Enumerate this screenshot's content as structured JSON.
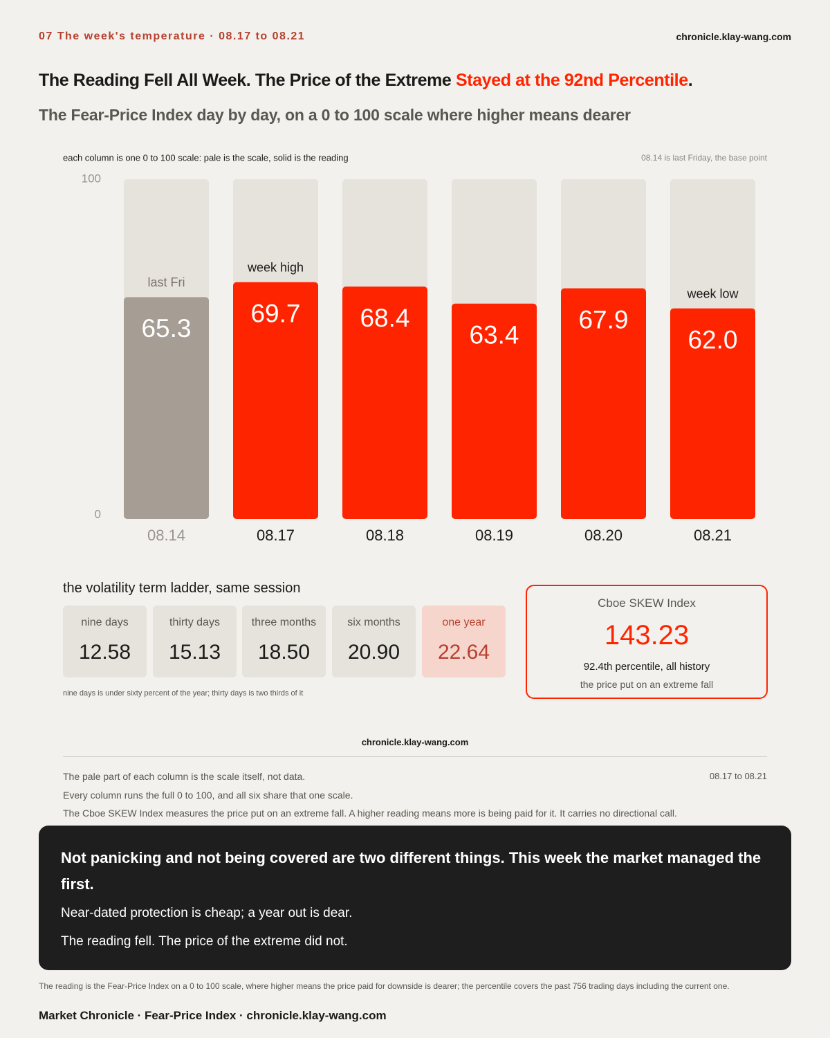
{
  "header": {
    "kicker": "07  The week's temperature · 08.17 to 08.21",
    "site": "chronicle.klay-wang.com"
  },
  "title": {
    "lead": "The Reading Fell All Week. The Price of the Extreme ",
    "highlight": "Stayed at the 92nd Percentile",
    "end": "."
  },
  "subtitle": "The Fear-Price Index day by day, on a 0 to 100 scale where higher means dearer",
  "chart_data": {
    "type": "bar",
    "note_left": "each column is one 0 to 100 scale: pale is the scale, solid is the reading",
    "note_right": "08.14 is last Friday, the base point",
    "categories": [
      "08.14",
      "08.17",
      "08.18",
      "08.19",
      "08.20",
      "08.21"
    ],
    "values": [
      65.3,
      69.7,
      68.4,
      63.4,
      67.9,
      62.0
    ],
    "value_labels": [
      "65.3",
      "69.7",
      "68.4",
      "63.4",
      "67.9",
      "62.0"
    ],
    "annotations": [
      "last Fri",
      "week high",
      null,
      null,
      null,
      "week low"
    ],
    "colors": [
      "#a69d94",
      "#ff2400",
      "#ff2400",
      "#ff2400",
      "#ff2400",
      "#ff2400"
    ],
    "category_colors": [
      "#9a948c",
      "#1a1a1a",
      "#1a1a1a",
      "#1a1a1a",
      "#1a1a1a",
      "#1a1a1a"
    ],
    "track_color": "#e6e3dc",
    "ylim": [
      0,
      100
    ],
    "yticks": [
      0,
      100
    ]
  },
  "ladder": {
    "title": "the volatility term ladder, same session",
    "items": [
      {
        "label": "nine days",
        "value": "12.58"
      },
      {
        "label": "thirty days",
        "value": "15.13"
      },
      {
        "label": "three months",
        "value": "18.50"
      },
      {
        "label": "six months",
        "value": "20.90"
      },
      {
        "label": "one year",
        "value": "22.64"
      }
    ],
    "note": "nine days is under sixty percent of the year; thirty days is two thirds of it"
  },
  "skew": {
    "title": "Cboe SKEW Index",
    "value": "143.23",
    "percentile": "92.4th percentile, all history",
    "caption": "the price put on an extreme fall"
  },
  "source": {
    "site": "chronicle.klay-wang.com",
    "range": "08.17 to 08.21",
    "notes": [
      "The pale part of each column is the scale itself, not data.",
      "Every column runs the full 0 to 100, and all six share that one scale.",
      "The Cboe SKEW Index measures the price put on an extreme fall. A higher reading means more is being paid for it. It carries no directional call."
    ]
  },
  "takeaway": {
    "headline": "Not panicking and not being covered are two different things. This week the market managed the first.",
    "lines": [
      "Near-dated protection is cheap; a year out is dear.",
      "The reading fell. The price of the extreme did not."
    ]
  },
  "footnote": "The reading is the Fear-Price Index on a 0 to 100 scale, where higher means the price paid for downside is dearer; the percentile covers the past 756 trading days including the current one.",
  "footer": "Market Chronicle · Fear-Price Index · chronicle.klay-wang.com"
}
